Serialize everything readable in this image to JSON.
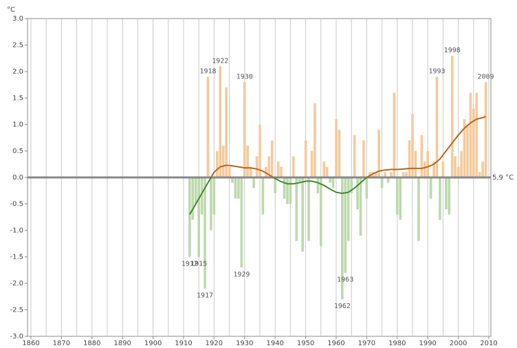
{
  "chart_data": {
    "type": "bar",
    "y_unit": "°C",
    "baseline_label": "5,9 °C",
    "x": [
      1912,
      1913,
      1914,
      1915,
      1916,
      1917,
      1918,
      1919,
      1920,
      1921,
      1922,
      1923,
      1924,
      1925,
      1926,
      1927,
      1928,
      1929,
      1930,
      1931,
      1932,
      1933,
      1934,
      1935,
      1936,
      1937,
      1938,
      1939,
      1940,
      1941,
      1942,
      1943,
      1944,
      1945,
      1946,
      1947,
      1948,
      1949,
      1950,
      1951,
      1952,
      1953,
      1954,
      1955,
      1956,
      1957,
      1958,
      1959,
      1960,
      1961,
      1962,
      1963,
      1964,
      1965,
      1966,
      1967,
      1968,
      1969,
      1970,
      1971,
      1972,
      1973,
      1974,
      1975,
      1976,
      1977,
      1978,
      1979,
      1980,
      1981,
      1982,
      1983,
      1984,
      1985,
      1986,
      1987,
      1988,
      1989,
      1990,
      1991,
      1992,
      1993,
      1994,
      1995,
      1996,
      1997,
      1998,
      1999,
      2000,
      2001,
      2002,
      2003,
      2004,
      2005,
      2006,
      2007,
      2008,
      2009
    ],
    "values": [
      -1.5,
      -0.8,
      -0.5,
      -1.5,
      -0.7,
      -2.1,
      1.9,
      -1.0,
      -0.7,
      0.5,
      2.1,
      0.6,
      1.7,
      0.2,
      -0.1,
      -0.4,
      -0.4,
      -1.7,
      1.8,
      0.6,
      0.2,
      -0.2,
      0.4,
      1.0,
      -0.7,
      0.2,
      0.4,
      0.7,
      -0.3,
      0.3,
      0.2,
      -0.4,
      -0.5,
      -0.5,
      0.4,
      -1.2,
      -0.1,
      -1.4,
      0.7,
      -1.2,
      0.5,
      1.4,
      -0.3,
      -1.3,
      0.3,
      0.2,
      -0.1,
      -0.2,
      1.1,
      0.9,
      -2.3,
      -1.8,
      -1.2,
      -0.3,
      0.8,
      -0.6,
      -1.1,
      0.7,
      -0.4,
      0.1,
      0.1,
      0.1,
      0.9,
      -0.2,
      0.1,
      -0.1,
      0.1,
      1.6,
      -0.7,
      -0.8,
      0.1,
      0.1,
      0.7,
      1.2,
      0.5,
      -1.2,
      0.8,
      0.3,
      0.5,
      -0.4,
      0.3,
      1.9,
      -0.8,
      0.3,
      -0.6,
      -0.7,
      2.3,
      0.4,
      0.2,
      0.5,
      1.1,
      1.0,
      1.6,
      1.3,
      1.6,
      0.1,
      0.3,
      1.8
    ],
    "color_positive": "#f6c99b",
    "color_negative": "#bcd9ac",
    "trend": {
      "x": [
        1912,
        1914,
        1916,
        1918,
        1920,
        1922,
        1924,
        1926,
        1928,
        1930,
        1932,
        1934,
        1936,
        1938,
        1940,
        1942,
        1944,
        1946,
        1948,
        1950,
        1952,
        1954,
        1956,
        1958,
        1960,
        1962,
        1964,
        1966,
        1968,
        1970,
        1972,
        1974,
        1976,
        1978,
        1980,
        1982,
        1984,
        1986,
        1988,
        1990,
        1992,
        1994,
        1996,
        1998,
        2000,
        2002,
        2004,
        2006,
        2008,
        2009
      ],
      "values": [
        -0.7,
        -0.5,
        -0.3,
        -0.1,
        0.1,
        0.2,
        0.23,
        0.22,
        0.2,
        0.18,
        0.18,
        0.16,
        0.12,
        0.05,
        -0.02,
        -0.08,
        -0.12,
        -0.12,
        -0.1,
        -0.07,
        -0.07,
        -0.1,
        -0.15,
        -0.22,
        -0.28,
        -0.3,
        -0.28,
        -0.2,
        -0.1,
        0.0,
        0.07,
        0.12,
        0.14,
        0.15,
        0.15,
        0.16,
        0.17,
        0.17,
        0.17,
        0.2,
        0.25,
        0.35,
        0.5,
        0.65,
        0.8,
        0.93,
        1.03,
        1.1,
        1.13,
        1.15
      ],
      "color_positive": "#b8651a",
      "color_negative": "#3f8a2c"
    },
    "annotations": [
      1912,
      1915,
      1917,
      1918,
      1922,
      1929,
      1930,
      1962,
      1963,
      1993,
      1998,
      2009
    ],
    "xlim": [
      1860,
      2010
    ],
    "xticks": [
      1860,
      1870,
      1880,
      1890,
      1900,
      1910,
      1920,
      1930,
      1940,
      1950,
      1960,
      1970,
      1980,
      1990,
      2000,
      2010
    ],
    "ylim": [
      -3,
      3
    ],
    "yticks": [
      {
        "value": -3,
        "label": "-3.0"
      },
      {
        "value": -2.5,
        "label": "-2.5"
      },
      {
        "value": -2,
        "label": "-2.0"
      },
      {
        "value": -1.5,
        "label": "-1.5"
      },
      {
        "value": -1,
        "label": "-1.0"
      },
      {
        "value": -0.5,
        "label": "-0.5"
      },
      {
        "value": 0,
        "label": "0.0"
      },
      {
        "value": 0.5,
        "label": "0.5"
      },
      {
        "value": 1,
        "label": "1.0"
      },
      {
        "value": 1.5,
        "label": "1.5"
      },
      {
        "value": 2,
        "label": "2.0"
      },
      {
        "value": 2.5,
        "label": "2.5"
      },
      {
        "value": 3,
        "label": "3.0"
      }
    ],
    "grid": true
  }
}
